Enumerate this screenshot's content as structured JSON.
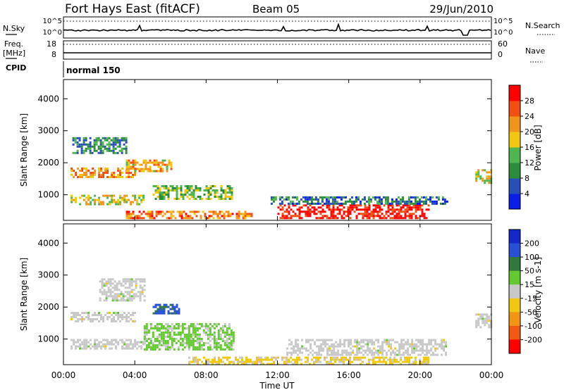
{
  "header": {
    "station": "Fort Hays East (fitACF)",
    "beam": "Beam 05",
    "date": "29/Jun/2010"
  },
  "noise_panel": {
    "left_label": "N.Sky",
    "right_label": "N.Search",
    "ticks": [
      "10^5",
      "10^0"
    ]
  },
  "freq_panel": {
    "left_label_1": "Freq.",
    "left_label_2": "[MHz]",
    "right_label": "Nave",
    "left_ticks": [
      "18",
      "8"
    ],
    "right_ticks": [
      "60",
      "0"
    ]
  },
  "cpid_panel": {
    "label": "CPID",
    "mode": "normal 150"
  },
  "colors": {
    "power_scale": [
      "#0a1ee6",
      "#2850b4",
      "#2d8c3c",
      "#50b450",
      "#f0c814",
      "#f0961e",
      "#f05014",
      "#ff0000"
    ],
    "velocity_scale": [
      "#1428c8",
      "#2850d2",
      "#32783c",
      "#64c832",
      "#c8c8c8",
      "#f0c814",
      "#f09614",
      "#f05a14",
      "#ff0000"
    ]
  },
  "chart_data": [
    {
      "type": "heatmap",
      "panel": "power",
      "ylabel": "Slant Range [km]",
      "yticks": [
        "1000",
        "2000",
        "3000",
        "4000"
      ],
      "ylim": [
        200,
        4600
      ],
      "xlabel": "",
      "xlim": [
        0,
        24
      ],
      "colorbar_label": "Power [dB]",
      "colorbar_ticks": [
        "4",
        "8",
        "12",
        "16",
        "20",
        "24",
        "28"
      ],
      "colorbar_range": [
        0,
        32
      ],
      "regions": [
        {
          "t0": 0.4,
          "t1": 4.0,
          "r0": 1550,
          "r1": 1850,
          "v": 22
        },
        {
          "t0": 0.4,
          "t1": 4.5,
          "r0": 700,
          "r1": 1000,
          "v": 18
        },
        {
          "t0": 3.5,
          "t1": 6.0,
          "r0": 1750,
          "r1": 2100,
          "v": 20
        },
        {
          "t0": 5.0,
          "t1": 9.5,
          "r0": 850,
          "r1": 1300,
          "v": 14
        },
        {
          "t0": 3.5,
          "t1": 10.5,
          "r0": 300,
          "r1": 500,
          "v": 24
        },
        {
          "t0": 12.0,
          "t1": 20.5,
          "r0": 300,
          "r1": 700,
          "v": 30
        },
        {
          "t0": 11.5,
          "t1": 21.5,
          "r0": 750,
          "r1": 950,
          "v": 8
        },
        {
          "t0": 0.5,
          "t1": 3.5,
          "r0": 2300,
          "r1": 2800,
          "v": 10
        },
        {
          "t0": 23.1,
          "t1": 24.0,
          "r0": 1400,
          "r1": 1800,
          "v": 18
        }
      ]
    },
    {
      "type": "heatmap",
      "panel": "velocity",
      "ylabel": "Slant Range [km]",
      "yticks": [
        "1000",
        "2000",
        "3000",
        "4000"
      ],
      "ylim": [
        200,
        4600
      ],
      "xlabel": "Time UT",
      "xticks": [
        "00:00",
        "04:00",
        "08:00",
        "12:00",
        "16:00",
        "20:00",
        "00:00"
      ],
      "xlim": [
        0,
        24
      ],
      "colorbar_label": "Velocity [m s-1]",
      "colorbar_ticks": [
        "200",
        "100",
        "50",
        "15",
        "-15",
        "-50",
        "-100",
        "-200"
      ],
      "colorbar_range": [
        -250,
        250
      ],
      "regions": [
        {
          "t0": 0.4,
          "t1": 4.0,
          "r0": 1550,
          "r1": 1850,
          "v": 0
        },
        {
          "t0": 0.4,
          "t1": 4.5,
          "r0": 700,
          "r1": 1000,
          "v": 0
        },
        {
          "t0": 4.5,
          "t1": 9.5,
          "r0": 700,
          "r1": 1500,
          "v": 40
        },
        {
          "t0": 5.0,
          "t1": 6.5,
          "r0": 1800,
          "r1": 2100,
          "v": 150
        },
        {
          "t0": 7.0,
          "t1": 20.5,
          "r0": 200,
          "r1": 450,
          "v": -40
        },
        {
          "t0": 12.5,
          "t1": 21.5,
          "r0": 500,
          "r1": 1000,
          "v": 0
        },
        {
          "t0": 2.0,
          "t1": 4.5,
          "r0": 2200,
          "r1": 2900,
          "v": 0
        },
        {
          "t0": 23.1,
          "t1": 24.0,
          "r0": 1400,
          "r1": 1800,
          "v": 0
        }
      ]
    }
  ]
}
